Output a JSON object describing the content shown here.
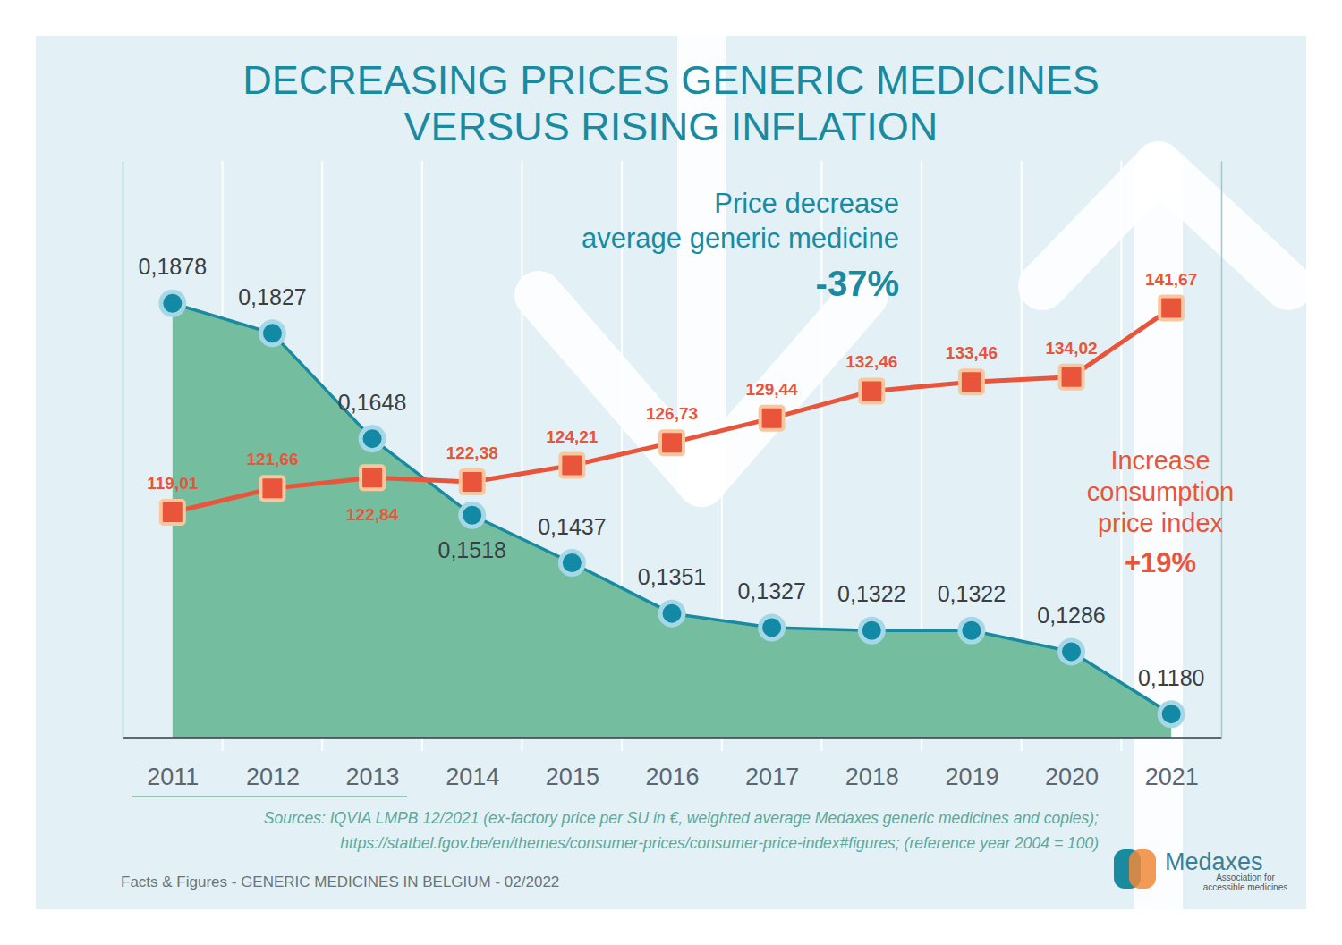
{
  "chart_data": {
    "type": "line",
    "title": "DECREASING PRICES GENERIC MEDICINES\nVERSUS RISING INFLATION",
    "categories": [
      "2011",
      "2012",
      "2013",
      "2014",
      "2015",
      "2016",
      "2017",
      "2018",
      "2019",
      "2020",
      "2021"
    ],
    "series": [
      {
        "type": "area",
        "color": "#1a8aa0",
        "marker": "circle",
        "values": [
          0.1878,
          0.1827,
          0.1648,
          0.1518,
          0.1437,
          0.1351,
          0.1327,
          0.1322,
          0.1322,
          0.1286,
          0.118
        ],
        "value_labels": [
          "0,1878",
          "0,1827",
          "0,1648",
          "0,1518",
          "0,1437",
          "0,1351",
          "0,1327",
          "0,1322",
          "0,1322",
          "0,1286",
          "0,1180"
        ]
      },
      {
        "type": "line",
        "color": "#e8553a",
        "marker": "square",
        "axis": "y2",
        "values": [
          119.01,
          121.66,
          122.84,
          122.38,
          124.21,
          126.73,
          129.44,
          132.46,
          133.46,
          134.02,
          141.67
        ],
        "value_labels": [
          "119,01",
          "121,66",
          "122,84",
          "122,38",
          "124,21",
          "126,73",
          "129,44",
          "132,46",
          "133,46",
          "134,02",
          "141,67"
        ]
      }
    ],
    "ylim": [
      0.114,
      0.212
    ],
    "y2lim": [
      94,
      158
    ],
    "data_labels": true,
    "tick_labels": "x",
    "annotations": [
      {
        "text": "Price decrease\naverage generic medicine",
        "label": "-37%"
      },
      {
        "text": "Increase\nconsumption\nprice index",
        "label": "+19%"
      }
    ],
    "source": "Sources: IQVIA LMPB 12/2021 (ex-factory price per SU in €, weighted average Medaxes generic medicines and copies);\nhttps://statbel.fgov.be/en/themes/consumer-prices/consumer-price-index#figures; (reference year 2004 = 100)",
    "footer": "Facts & Figures - GENERIC MEDICINES IN BELGIUM - 02/2022",
    "logo": {
      "name": "Medaxes",
      "tagline": "Association for\naccessible medicines"
    }
  }
}
